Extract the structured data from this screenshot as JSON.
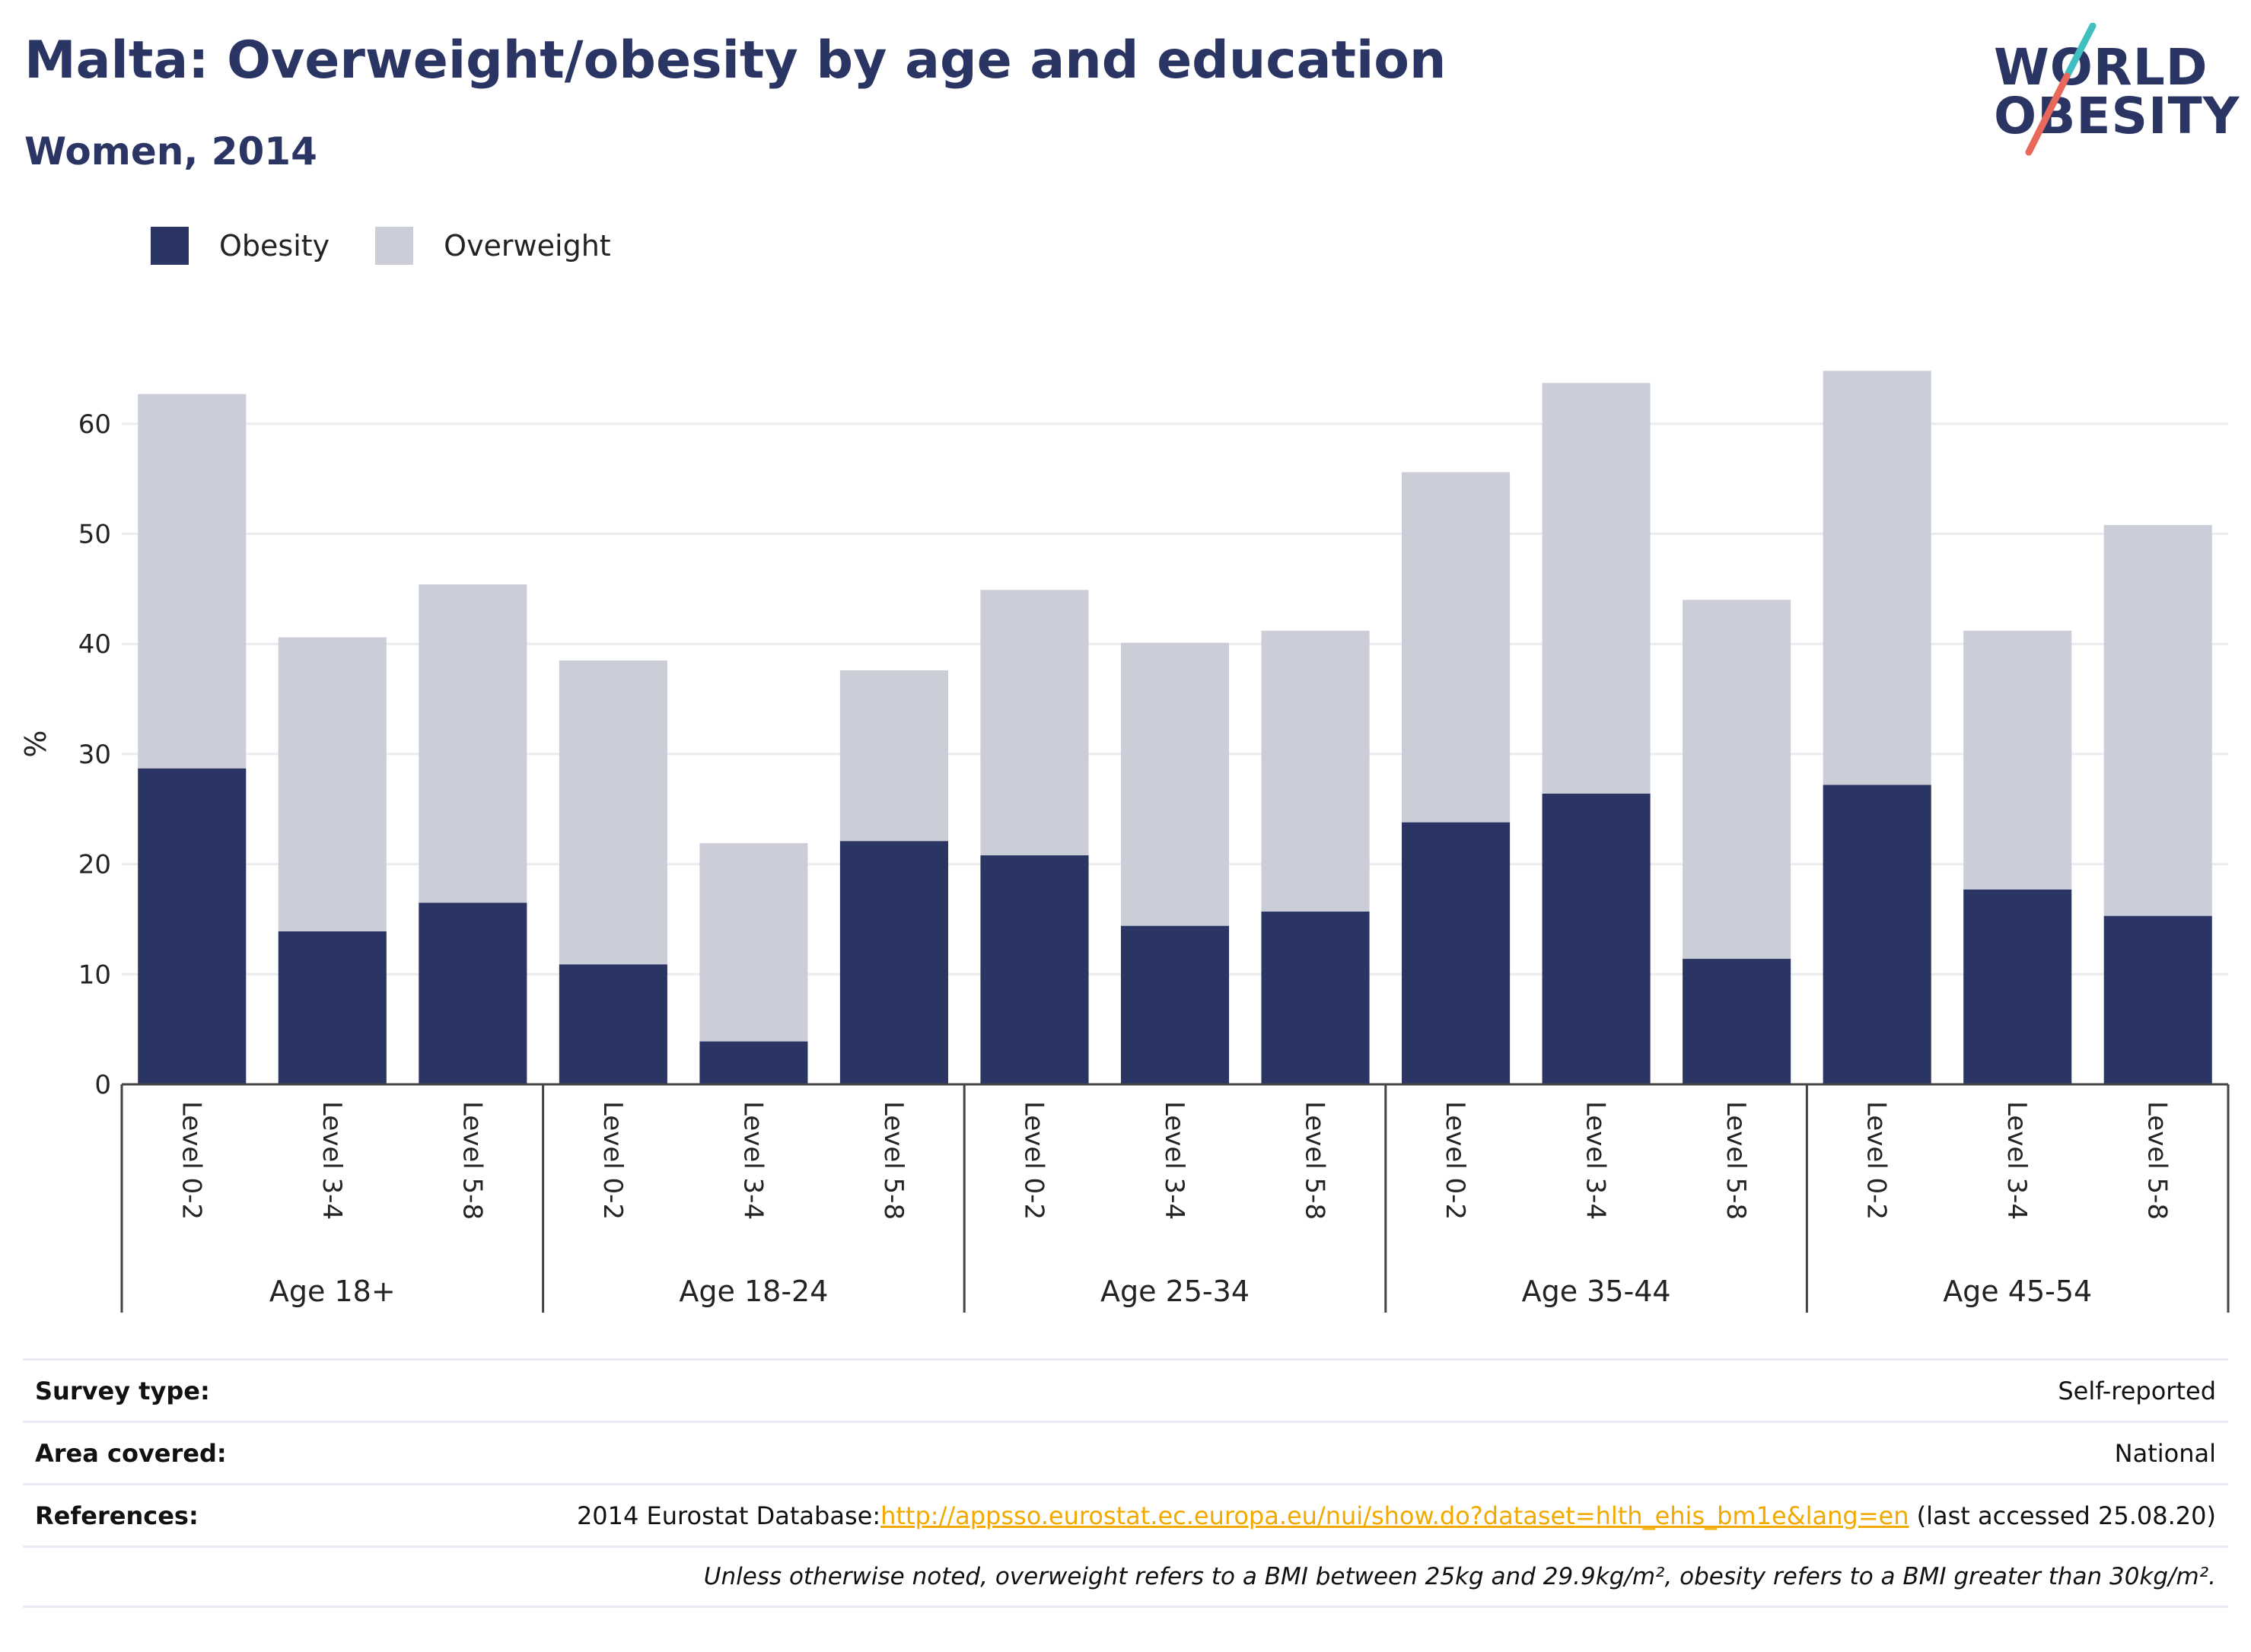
{
  "header": {
    "title": "Malta: Overweight/obesity by age and education",
    "subtitle": "Women, 2014"
  },
  "logo": {
    "line1": "WORLD",
    "line2": "OBESITY",
    "accent_colors": [
      "#3fbfbf",
      "#e8695b"
    ]
  },
  "legend": [
    {
      "label": "Obesity",
      "color": "#2a3563"
    },
    {
      "label": "Overweight",
      "color": "#cbcdd9"
    }
  ],
  "chart_data": {
    "type": "bar",
    "stacked": true,
    "ylabel": "%",
    "ylim": [
      0,
      66
    ],
    "yticks": [
      0,
      10,
      20,
      30,
      40,
      50,
      60
    ],
    "grid": true,
    "legend_position": "top-left",
    "categories": [
      "Level 0-2",
      "Level 3-4",
      "Level 5-8",
      "Level 0-2",
      "Level 3-4",
      "Level 5-8",
      "Level 0-2",
      "Level 3-4",
      "Level 5-8",
      "Level 0-2",
      "Level 3-4",
      "Level 5-8",
      "Level 0-2",
      "Level 3-4",
      "Level 5-8"
    ],
    "groups": [
      {
        "label": "Age 18+",
        "count": 3
      },
      {
        "label": "Age 18-24",
        "count": 3
      },
      {
        "label": "Age 25-34",
        "count": 3
      },
      {
        "label": "Age 35-44",
        "count": 3
      },
      {
        "label": "Age 45-54",
        "count": 3
      }
    ],
    "series": [
      {
        "name": "Obesity",
        "color": "#2a3563",
        "values": [
          28.7,
          13.9,
          16.5,
          10.9,
          3.9,
          22.1,
          20.8,
          14.4,
          15.7,
          23.8,
          26.4,
          11.4,
          27.2,
          17.7,
          15.3
        ]
      },
      {
        "name": "Overweight",
        "color": "#cbcdd9",
        "values": [
          34.0,
          26.7,
          28.9,
          27.6,
          18.0,
          15.5,
          24.1,
          25.7,
          25.5,
          31.8,
          37.3,
          32.6,
          37.6,
          23.5,
          35.5
        ]
      }
    ]
  },
  "info": {
    "survey_type": {
      "label": "Survey type:",
      "value": "Self-reported"
    },
    "area_covered": {
      "label": "Area covered:",
      "value": "National"
    },
    "references": {
      "label": "References:",
      "prefix": "2014 Eurostat Database:",
      "link": "http://appsso.eurostat.ec.europa.eu/nui/show.do?dataset=hlth_ehis_bm1e&lang=en",
      "suffix": " (last accessed 25.08.20)"
    },
    "note": "Unless otherwise noted, overweight refers to a BMI between 25kg and 29.9kg/m², obesity refers to a BMI greater than 30kg/m²."
  }
}
